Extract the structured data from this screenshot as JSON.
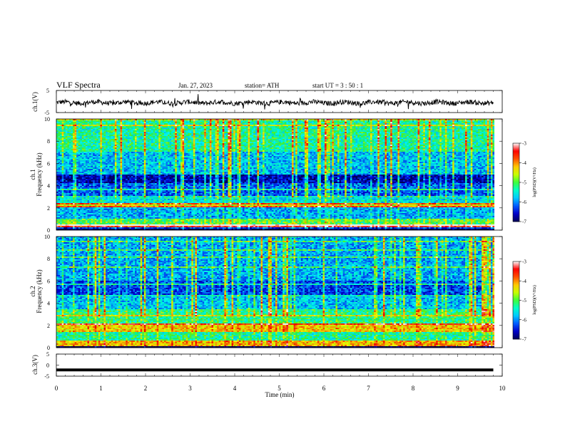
{
  "header": {
    "title": "VLF  Spectra",
    "date": "Jan. 27, 2023",
    "station": "station= ATH",
    "start_ut": "start  UT  =    3   : 50 : 1"
  },
  "colorbar": {
    "label": "log(PSD)(V²/Hz)",
    "ticks": [
      "-3",
      "-4",
      "-5",
      "-6",
      "-7"
    ]
  },
  "chart_data": [
    {
      "type": "line",
      "title": "",
      "ylabel": "ch.1(V)",
      "ylim": [
        -5,
        5
      ],
      "yticks": [
        "5",
        "-5"
      ],
      "xlim": [
        0,
        10
      ],
      "description_values": "noisy waveform near -0.5 V",
      "mean": -0.5
    },
    {
      "type": "heatmap",
      "ylabel": "ch.1\nFrequency (kHz)",
      "ylabel_lines": [
        "ch.1",
        "Frequency (kHz)"
      ],
      "ylim": [
        0,
        10
      ],
      "yticks": [
        "0",
        "2",
        "4",
        "6",
        "8",
        "10"
      ],
      "xlim": [
        0,
        9.8
      ],
      "colorscale": [
        "#000080",
        "#0000ff",
        "#00a0ff",
        "#00ffff",
        "#00ff80",
        "#ffff00",
        "#ff8000",
        "#ff0000",
        "#ffffff"
      ],
      "zlim": [
        -7,
        -3
      ]
    },
    {
      "type": "heatmap",
      "ylabel": "ch.2\nFrequency (kHz)",
      "ylabel_lines": [
        "ch.2",
        "Frequency (kHz)"
      ],
      "ylim": [
        0,
        10
      ],
      "yticks": [
        "0",
        "2",
        "4",
        "6",
        "8",
        "10"
      ],
      "xlim": [
        0,
        9.8
      ],
      "zlim": [
        -7,
        -3
      ]
    },
    {
      "type": "line",
      "ylabel": "ch.3(V)",
      "ylim": [
        -5,
        5
      ],
      "yticks": [
        "5",
        "0",
        "-5"
      ],
      "xlim": [
        0,
        10
      ],
      "mean": -2.2
    }
  ],
  "xaxis": {
    "label": "Time  (min)",
    "ticks": [
      "0",
      "1",
      "2",
      "3",
      "4",
      "5",
      "6",
      "7",
      "8",
      "9",
      "10"
    ]
  }
}
